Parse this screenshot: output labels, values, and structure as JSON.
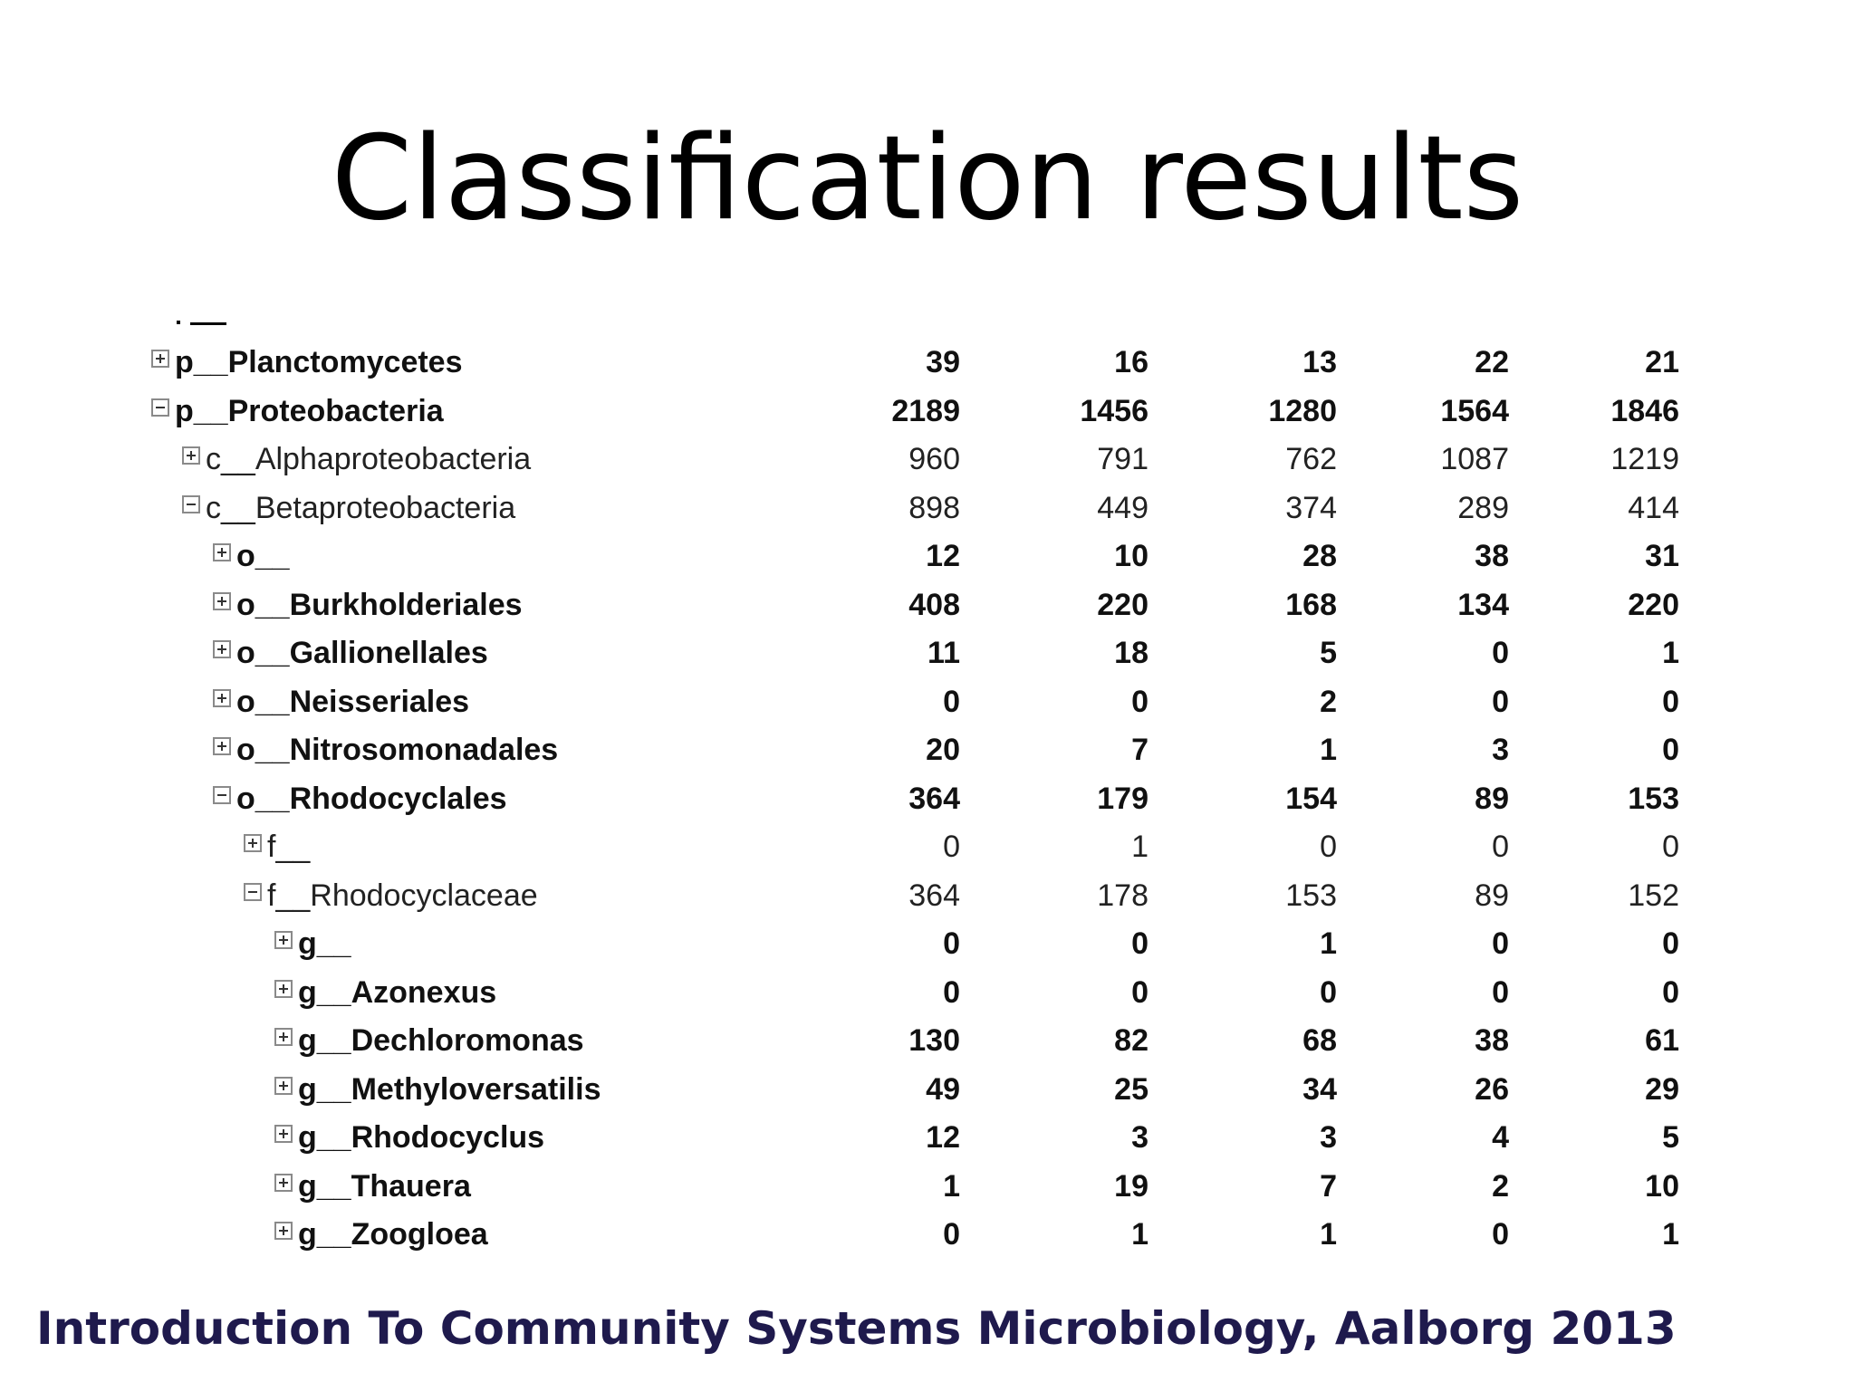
{
  "slide": {
    "title": "Classification results",
    "footer": "Introduction To Community Systems Microbiology, Aalborg 2013"
  },
  "table": {
    "rows": [
      {
        "label": "p__Planctomycetes",
        "level": 0,
        "toggle": "plus",
        "bold": true,
        "values": [
          "39",
          "16",
          "13",
          "22",
          "21"
        ]
      },
      {
        "label": "p__Proteobacteria",
        "level": 0,
        "toggle": "minus",
        "bold": true,
        "values": [
          "2189",
          "1456",
          "1280",
          "1564",
          "1846"
        ]
      },
      {
        "label": "c__Alphaproteobacteria",
        "level": 1,
        "toggle": "plus",
        "bold": false,
        "values": [
          "960",
          "791",
          "762",
          "1087",
          "1219"
        ]
      },
      {
        "label": "c__Betaproteobacteria",
        "level": 1,
        "toggle": "minus",
        "bold": false,
        "values": [
          "898",
          "449",
          "374",
          "289",
          "414"
        ]
      },
      {
        "label": "o__",
        "level": 2,
        "toggle": "plus",
        "bold": true,
        "values": [
          "12",
          "10",
          "28",
          "38",
          "31"
        ]
      },
      {
        "label": "o__Burkholderiales",
        "level": 2,
        "toggle": "plus",
        "bold": true,
        "values": [
          "408",
          "220",
          "168",
          "134",
          "220"
        ]
      },
      {
        "label": "o__Gallionellales",
        "level": 2,
        "toggle": "plus",
        "bold": true,
        "values": [
          "11",
          "18",
          "5",
          "0",
          "1"
        ]
      },
      {
        "label": "o__Neisseriales",
        "level": 2,
        "toggle": "plus",
        "bold": true,
        "values": [
          "0",
          "0",
          "2",
          "0",
          "0"
        ]
      },
      {
        "label": "o__Nitrosomonadales",
        "level": 2,
        "toggle": "plus",
        "bold": true,
        "values": [
          "20",
          "7",
          "1",
          "3",
          "0"
        ]
      },
      {
        "label": "o__Rhodocyclales",
        "level": 2,
        "toggle": "minus",
        "bold": true,
        "values": [
          "364",
          "179",
          "154",
          "89",
          "153"
        ]
      },
      {
        "label": "f__",
        "level": 3,
        "toggle": "plus",
        "bold": false,
        "values": [
          "0",
          "1",
          "0",
          "0",
          "0"
        ]
      },
      {
        "label": "f__Rhodocyclaceae",
        "level": 3,
        "toggle": "minus",
        "bold": false,
        "values": [
          "364",
          "178",
          "153",
          "89",
          "152"
        ]
      },
      {
        "label": "g__",
        "level": 4,
        "toggle": "plus",
        "bold": true,
        "values": [
          "0",
          "0",
          "1",
          "0",
          "0"
        ]
      },
      {
        "label": "g__Azonexus",
        "level": 4,
        "toggle": "plus",
        "bold": true,
        "values": [
          "0",
          "0",
          "0",
          "0",
          "0"
        ]
      },
      {
        "label": "g__Dechloromonas",
        "level": 4,
        "toggle": "plus",
        "bold": true,
        "values": [
          "130",
          "82",
          "68",
          "38",
          "61"
        ]
      },
      {
        "label": "g__Methyloversatilis",
        "level": 4,
        "toggle": "plus",
        "bold": true,
        "values": [
          "49",
          "25",
          "34",
          "26",
          "29"
        ]
      },
      {
        "label": "g__Rhodocyclus",
        "level": 4,
        "toggle": "plus",
        "bold": true,
        "values": [
          "12",
          "3",
          "3",
          "4",
          "5"
        ]
      },
      {
        "label": "g__Thauera",
        "level": 4,
        "toggle": "plus",
        "bold": true,
        "values": [
          "1",
          "19",
          "7",
          "2",
          "10"
        ]
      },
      {
        "label": "g__Zoogloea",
        "level": 4,
        "toggle": "plus",
        "bold": true,
        "values": [
          "0",
          "1",
          "1",
          "0",
          "1"
        ]
      }
    ]
  }
}
